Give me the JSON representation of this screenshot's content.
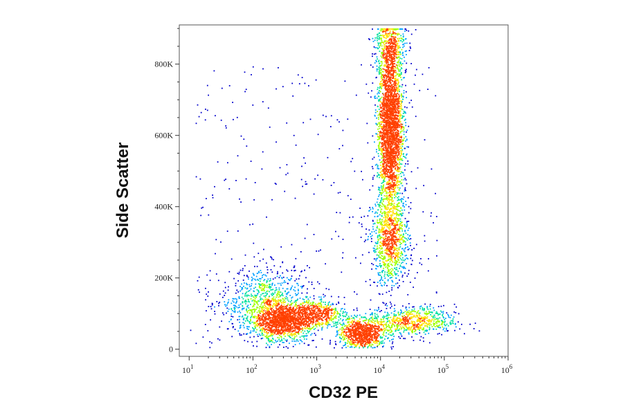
{
  "chart_data": {
    "type": "scatter",
    "subtype": "flow-cytometry density dot plot (pseudocolor)",
    "xlabel": "CD32 PE",
    "ylabel": "Side Scatter",
    "x_scale": "log",
    "xlim": [
      7,
      1000000
    ],
    "ylim": [
      -20000,
      910000
    ],
    "x_ticks": [
      {
        "value": 10,
        "base": "10",
        "exp": "1"
      },
      {
        "value": 100,
        "base": "10",
        "exp": "2"
      },
      {
        "value": 1000,
        "base": "10",
        "exp": "3"
      },
      {
        "value": 10000,
        "base": "10",
        "exp": "4"
      },
      {
        "value": 100000,
        "base": "10",
        "exp": "5"
      },
      {
        "value": 1000000,
        "base": "10",
        "exp": "6"
      }
    ],
    "y_ticks": [
      {
        "value": 0,
        "label": "0"
      },
      {
        "value": 200000,
        "label": "200K"
      },
      {
        "value": 400000,
        "label": "400K"
      },
      {
        "value": 600000,
        "label": "600K"
      },
      {
        "value": 800000,
        "label": "800K"
      }
    ],
    "density_colors": [
      "#0000cc",
      "#00a0ff",
      "#00e0a0",
      "#a0ff00",
      "#ffe000",
      "#ff4000"
    ],
    "grid": false,
    "legend": "none",
    "populations": [
      {
        "x_center": 300,
        "y_center": 80000,
        "log_sd_x": 0.22,
        "sd_y": 25000,
        "count": 1300
      },
      {
        "x_center": 150,
        "y_center": 130000,
        "log_sd_x": 0.35,
        "sd_y": 50000,
        "count": 900
      },
      {
        "x_center": 1100,
        "y_center": 100000,
        "log_sd_x": 0.2,
        "sd_y": 20000,
        "count": 500
      },
      {
        "x_center": 5000,
        "y_center": 45000,
        "log_sd_x": 0.18,
        "sd_y": 20000,
        "count": 900
      },
      {
        "x_center": 30000,
        "y_center": 80000,
        "log_sd_x": 0.35,
        "sd_y": 20000,
        "count": 700
      },
      {
        "x_center": 14000,
        "y_center": 620000,
        "log_sd_x": 0.1,
        "sd_y": 120000,
        "count": 2800
      },
      {
        "x_center": 14000,
        "y_center": 300000,
        "log_sd_x": 0.15,
        "sd_y": 60000,
        "count": 900
      },
      {
        "x_center": 14000,
        "y_center": 850000,
        "log_sd_x": 0.12,
        "sd_y": 40000,
        "count": 400
      }
    ]
  }
}
